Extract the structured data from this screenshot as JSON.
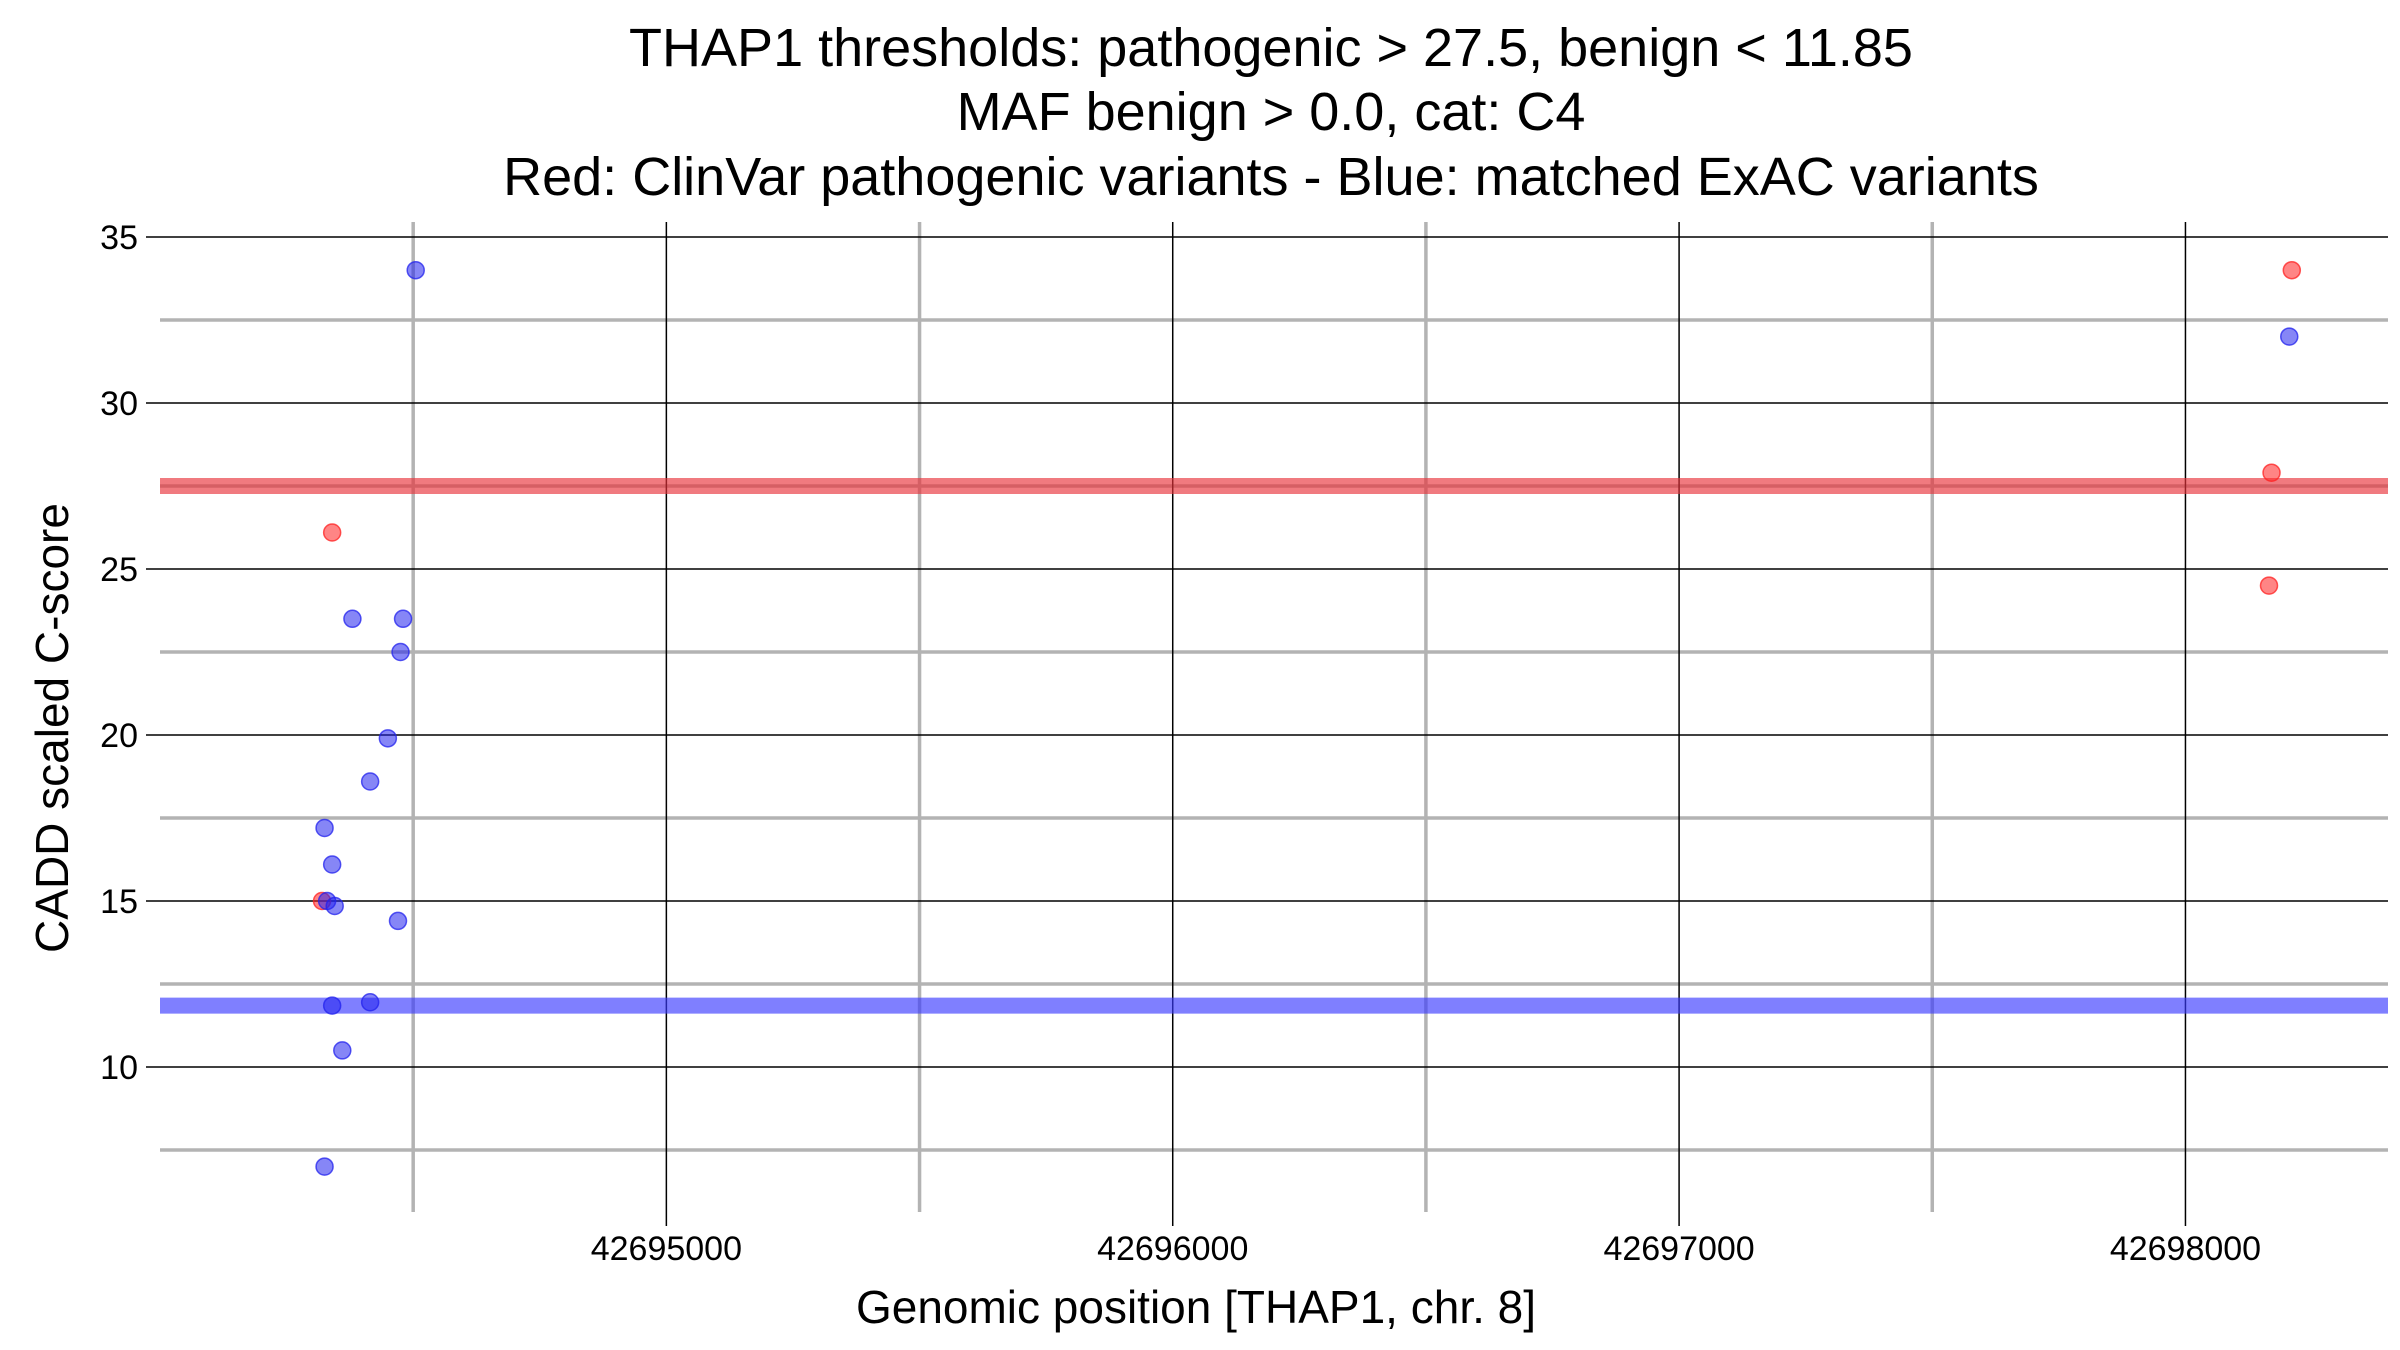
{
  "chart_data": {
    "type": "scatter",
    "title_lines": [
      "THAP1 thresholds: pathogenic > 27.5, benign < 11.85",
      "MAF benign > 0.0, cat: C4",
      "Red: ClinVar pathogenic variants - Blue: matched ExAC variants"
    ],
    "xlabel": "Genomic position [THAP1, chr. 8]",
    "ylabel": "CADD scaled C-score",
    "xlim": [
      42694000,
      42698400
    ],
    "ylim": [
      6.0,
      35.0
    ],
    "x_ticks": [
      42695000,
      42696000,
      42697000,
      42698000
    ],
    "x_tick_labels": [
      "42695000",
      "42696000",
      "42697000",
      "42698000"
    ],
    "x_minor_ticks": [
      42694500,
      42695500,
      42696500,
      42697500
    ],
    "y_ticks": [
      10,
      15,
      20,
      25,
      30,
      35
    ],
    "y_tick_labels": [
      "10",
      "15",
      "20",
      "25",
      "30",
      "35"
    ],
    "y_minor_ticks": [
      7.5,
      12.5,
      17.5,
      22.5,
      27.5,
      32.5
    ],
    "thresholds": [
      {
        "name": "pathogenic",
        "value": 27.5,
        "color": "#e8333a"
      },
      {
        "name": "benign",
        "value": 11.85,
        "color": "#3b3bff"
      }
    ],
    "series": [
      {
        "name": "ClinVar pathogenic variants",
        "color": "#ff2020",
        "points": [
          {
            "x": 42694340,
            "y": 26.1
          },
          {
            "x": 42694320,
            "y": 15.0
          },
          {
            "x": 42698210,
            "y": 34.0
          },
          {
            "x": 42698170,
            "y": 27.9
          },
          {
            "x": 42698165,
            "y": 24.5
          }
        ]
      },
      {
        "name": "matched ExAC variants",
        "color": "#2222ee",
        "points": [
          {
            "x": 42694505,
            "y": 34.0
          },
          {
            "x": 42694380,
            "y": 23.5
          },
          {
            "x": 42694480,
            "y": 23.5
          },
          {
            "x": 42694475,
            "y": 22.5
          },
          {
            "x": 42694450,
            "y": 19.9
          },
          {
            "x": 42694415,
            "y": 18.6
          },
          {
            "x": 42694325,
            "y": 17.2
          },
          {
            "x": 42694340,
            "y": 16.1
          },
          {
            "x": 42694330,
            "y": 15.0
          },
          {
            "x": 42694345,
            "y": 14.85
          },
          {
            "x": 42694470,
            "y": 14.4
          },
          {
            "x": 42694340,
            "y": 11.85
          },
          {
            "x": 42694415,
            "y": 11.95
          },
          {
            "x": 42694360,
            "y": 10.5
          },
          {
            "x": 42694325,
            "y": 7.0
          },
          {
            "x": 42698205,
            "y": 32.0
          }
        ]
      }
    ]
  }
}
